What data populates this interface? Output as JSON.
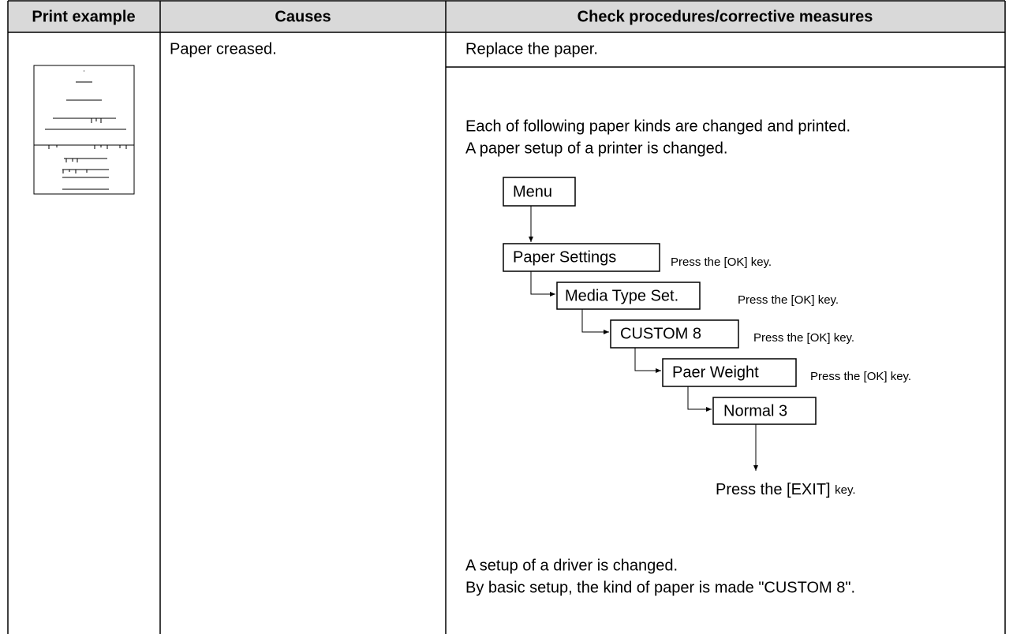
{
  "table": {
    "header": [
      "Print example",
      "Causes",
      "Check procedures/corrective measures"
    ],
    "cause": "Paper creased.",
    "measure_1": "Replace the paper.",
    "measure_2": {
      "lines": [
        "Each of following paper kinds are changed and printed.",
        "A paper setup of a printer is changed."
      ],
      "diagram": {
        "nodes": [
          {
            "label": "Menu"
          },
          {
            "label": "Paper Settings",
            "note": "Press the [OK] key."
          },
          {
            "label": "Media Type Set.",
            "note": "Press the [OK] key."
          },
          {
            "label": "CUSTOM 8",
            "note": "Press the [OK] key."
          },
          {
            "label": "Paer Weight",
            "note": "Press the [OK] key."
          },
          {
            "label": "Normal 3"
          }
        ],
        "exit": [
          "Press the [EXIT]",
          "key."
        ]
      },
      "driver_lines": [
        "A setup of a driver is changed.",
        "By basic setup, the kind of paper is made \"CUSTOM 8\"."
      ]
    }
  }
}
